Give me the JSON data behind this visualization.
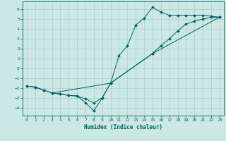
{
  "xlabel": "Humidex (Indice chaleur)",
  "background_color": "#cce8e4",
  "grid_color": "#aaceca",
  "line_color": "#005f5f",
  "xlim": [
    -0.5,
    23.5
  ],
  "ylim": [
    -4.8,
    6.8
  ],
  "yticks": [
    -4,
    -3,
    -2,
    -1,
    0,
    1,
    2,
    3,
    4,
    5,
    6
  ],
  "xticks": [
    0,
    1,
    2,
    3,
    4,
    5,
    6,
    7,
    8,
    9,
    10,
    11,
    12,
    13,
    14,
    15,
    16,
    17,
    18,
    19,
    20,
    21,
    22,
    23
  ],
  "line1_x": [
    0,
    1,
    2,
    3,
    4,
    5,
    6,
    7,
    8,
    9,
    10,
    11,
    12,
    13,
    14,
    15,
    16,
    17,
    18,
    19,
    20,
    21,
    22,
    23
  ],
  "line1_y": [
    -1.8,
    -1.9,
    -2.2,
    -2.5,
    -2.6,
    -2.75,
    -2.8,
    -3.5,
    -4.3,
    -3.0,
    -1.5,
    1.3,
    2.3,
    4.4,
    5.1,
    6.2,
    5.7,
    5.4,
    5.4,
    5.4,
    5.4,
    5.4,
    5.3,
    5.2
  ],
  "line2_x": [
    0,
    1,
    2,
    3,
    10,
    15,
    16,
    17,
    18,
    19,
    20,
    21,
    22,
    23
  ],
  "line2_y": [
    -1.8,
    -1.9,
    -2.2,
    -2.5,
    -1.5,
    1.5,
    2.3,
    3.0,
    3.8,
    4.5,
    4.8,
    5.0,
    5.2,
    5.2
  ],
  "line3_x": [
    3,
    4,
    5,
    6,
    7,
    8,
    9,
    10,
    15,
    23
  ],
  "line3_y": [
    -2.5,
    -2.6,
    -2.75,
    -2.8,
    -3.1,
    -3.5,
    -3.0,
    -1.5,
    1.5,
    5.2
  ]
}
